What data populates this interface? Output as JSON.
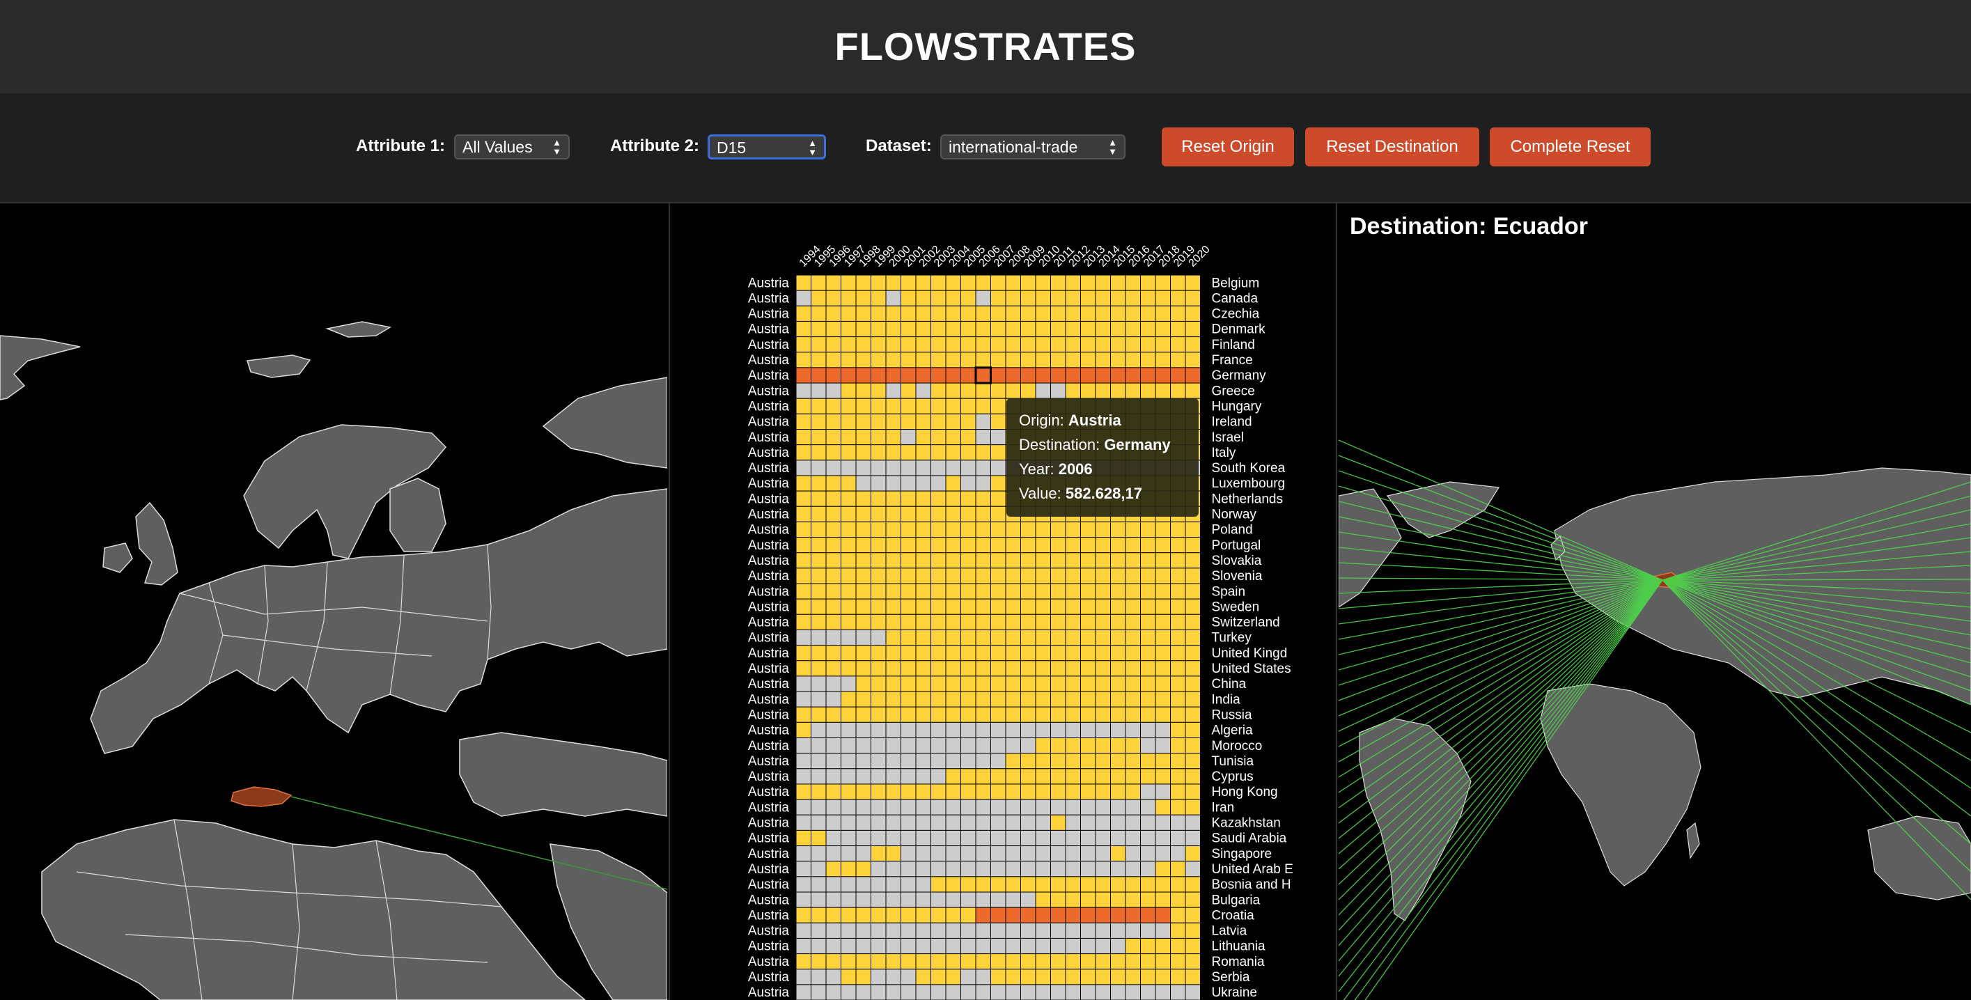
{
  "app": {
    "title": "FLOWSTRATES"
  },
  "controls": {
    "attr1_label": "Attribute 1:",
    "attr1_value": "All Values",
    "attr2_label": "Attribute 2:",
    "attr2_value": "D15",
    "dataset_label": "Dataset:",
    "dataset_value": "international-trade",
    "reset_origin": "Reset Origin",
    "reset_destination": "Reset Destination",
    "complete_reset": "Complete Reset"
  },
  "destination_panel": {
    "title": "Destination: Ecuador"
  },
  "matrix": {
    "years": [
      "1994",
      "1995",
      "1996",
      "1997",
      "1998",
      "1999",
      "2000",
      "2001",
      "2002",
      "2003",
      "2004",
      "2005",
      "2006",
      "2007",
      "2008",
      "2009",
      "2010",
      "2011",
      "2012",
      "2013",
      "2014",
      "2015",
      "2016",
      "2017",
      "2018",
      "2019",
      "2020"
    ],
    "origin": "Austria",
    "destinations": [
      "Belgium",
      "Canada",
      "Czechia",
      "Denmark",
      "Finland",
      "France",
      "Germany",
      "Greece",
      "Hungary",
      "Ireland",
      "Israel",
      "Italy",
      "South Korea",
      "Luxembourg",
      "Netherlands",
      "Norway",
      "Poland",
      "Portugal",
      "Slovakia",
      "Slovenia",
      "Spain",
      "Sweden",
      "Switzerland",
      "Turkey",
      "United Kingd",
      "United States",
      "China",
      "India",
      "Russia",
      "Algeria",
      "Morocco",
      "Tunisia",
      "Cyprus",
      "Hong Kong",
      "Iran",
      "Kazakhstan",
      "Saudi Arabia",
      "Singapore",
      "United Arab E",
      "Bosnia and H",
      "Bulgaria",
      "Croatia",
      "Latvia",
      "Lithuania",
      "Romania",
      "Serbia",
      "Ukraine"
    ],
    "rows": [
      "yyyyyyyyyyyyyyyyyyyyyyyyyyy",
      "gyyyyygyyyyygyyyyyyyyyyyyyy",
      "yyyyyyyyyyyyyyyyyyyyyyyyyyy",
      "yyyyyyyyyyyyyyyyyyyyyyyyyyy",
      "yyyyyyyyyyyyyyyyyyyyyyyyyyy",
      "yyyyyyyyyyyyyyyyyyyyyyyyyyy",
      "ooooooooooooooooooooooooooo",
      "gggyyygygyyyyyyyggyyyyyyyyy",
      "yyyyyyyyyyyyyyyyyyyyyyyyyyy",
      "yyyyyyyyyyyygyyyyyyyyyyyyyy",
      "yyyyyyygyyyyggyyyyyyyyyyyyy",
      "yyyyyyyyyyyyyyyyyyyyyyyyyyy",
      "ggggggggggggggggggggggggggg",
      "yyyyggggggyggyyyyyyyyyyyyyy",
      "yyyyyyyyyyyyyyyyyyyyyyyyyyy",
      "yyyyyyyyyyyyyyyyyyyyyyyyyyy",
      "yyyyyyyyyyyyyyyyyyyyyyyyyyy",
      "yyyyyyyyyyyyyyyyyyyyyyyyyyy",
      "yyyyyyyyyyyyyyyyyyyyyyyyyyy",
      "yyyyyyyyyyyyyyyyyyyyyyyyyyy",
      "yyyyyyyyyyyyyyyyyyyyyyyyyyy",
      "yyyyyyyyyyyyyyyyyyyyyyyyyyy",
      "yyyyyyyyyyyyyyyyyyyyyyyyyyy",
      "ggggggyyyyyyyyyyyyyyyyyyyyy",
      "yyyyyyyyyyyyyyyyyyyyyyyyyyy",
      "yyyyyyyyyyyyyyyyyyyyyyyyyyy",
      "ggggyyyyyyyyyyyyyyyyyyyyyyy",
      "gggyyyyyyyyyyyyyyyyyyyyyyyy",
      "yyyyyyyyyyyyyyyyyyyyyyyyyyy",
      "yggggggggggggggggggggggggyy",
      "ggggggggggggggggyyyyyyyggyy",
      "ggggggggggggggyyyyyyyyyyyyy",
      "ggggggggggyyyyyyyyyyyyyyyyy",
      "yyyyyyyyyyyyyyyyyyyyyyyggyy",
      "ggggggggggggggggggggggggyyy",
      "gggggggggggggggggyggggggggg",
      "yyggggggggggggggggggggggggg",
      "gggggyyggggggggggggggyggggy",
      "ggyyygggggggggggggggggggyyg",
      "gggggggggyyyyyyyyyyyyyyyyyy",
      "ggggggggggggggggyyyyyyyyyyy",
      "yyyyyyyyyyyyoooooooooooooyy",
      "gggggggggggggggggggggggggyy",
      "ggggggggggggggggggggggyyyyy",
      "yyyyyyyyyyyyyyyyyyyyyyyyyyy",
      "gggyygggyyyggyyyyyyyyyyyyyy",
      "ggggggggggggggggggggggggggg"
    ],
    "colors": {
      "y": "#fdd23b",
      "o": "#ed6a2c",
      "g": "#cdcdcd"
    }
  },
  "tooltip": {
    "origin_label": "Origin:",
    "origin_value": "Austria",
    "destination_label": "Destination:",
    "destination_value": "Germany",
    "year_label": "Year:",
    "year_value": "2006",
    "value_label": "Value:",
    "value_value": "582.628,17"
  },
  "colors": {
    "header_bg": "#2a2a2a",
    "controls_bg": "#1f1f1f",
    "button_bg": "#cd4a2a",
    "land": "#5f5f5f",
    "selected_country": "#8b3a1a",
    "flow_lines": "#4dd94a"
  }
}
